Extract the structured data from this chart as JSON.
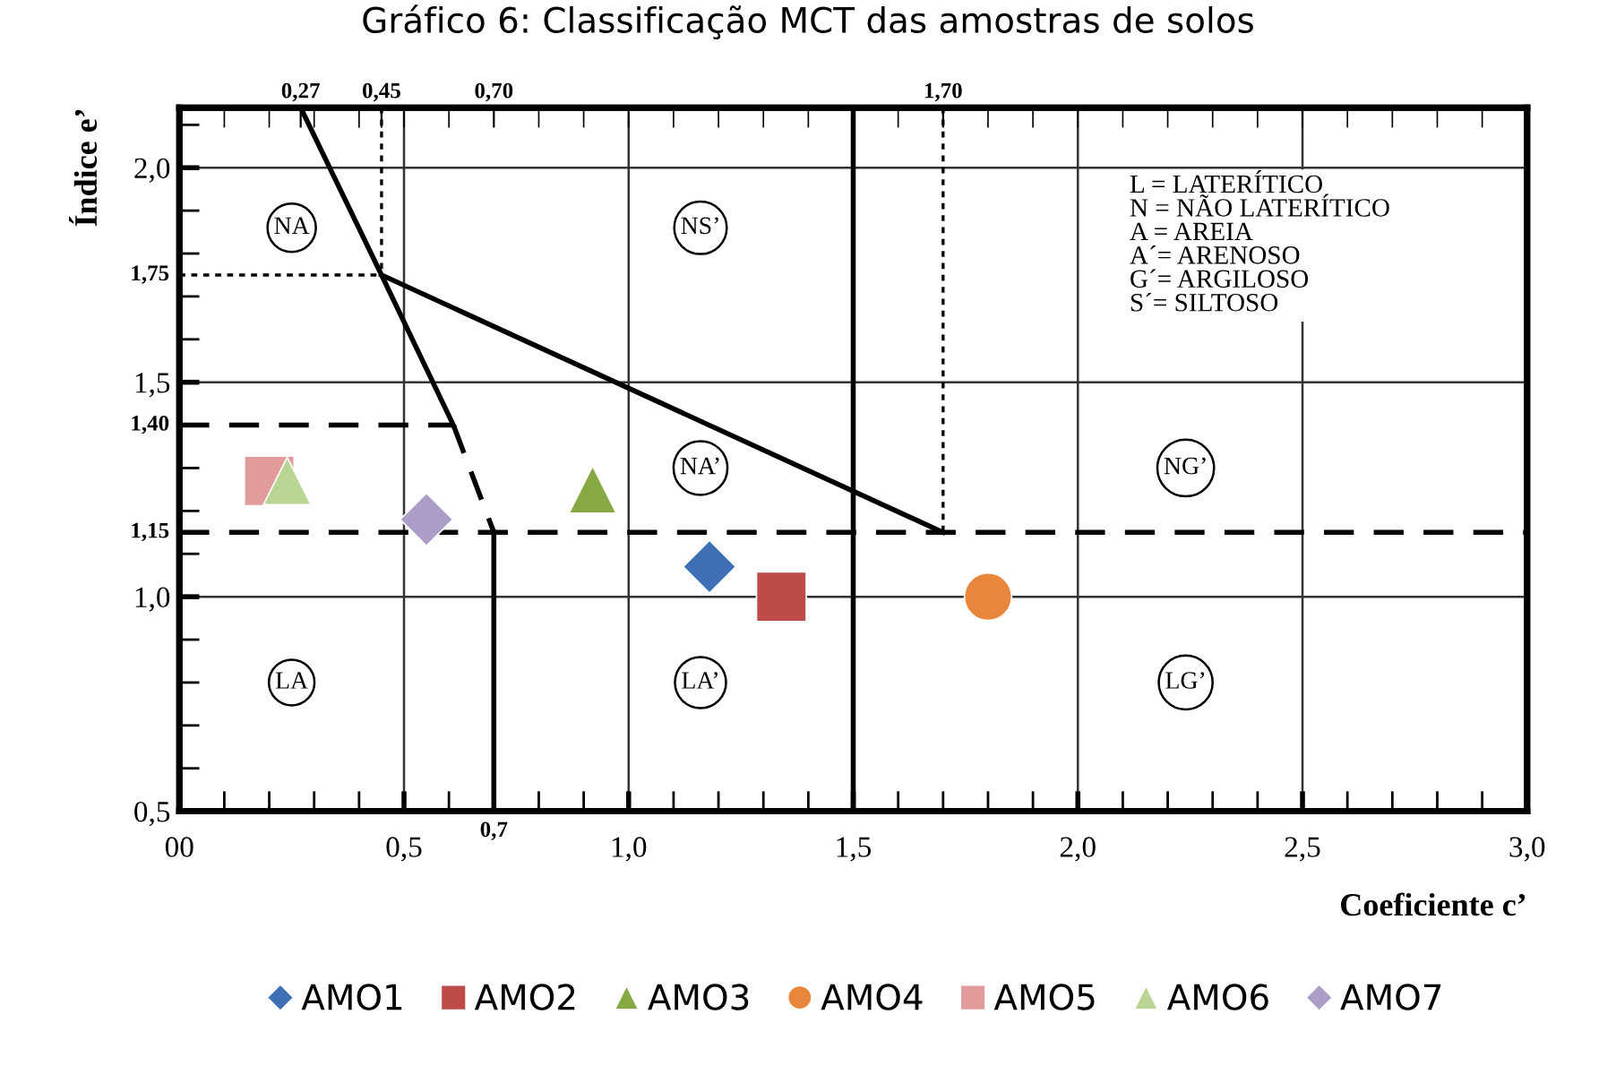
{
  "chart_data": {
    "type": "scatter",
    "title": "Gráfico 6: Classificação MCT das amostras de solos",
    "xlabel": "Coeficiente c’",
    "ylabel": "Índice e’",
    "xlim": [
      0,
      3.0
    ],
    "ylim": [
      0.5,
      2.14
    ],
    "xticks": [
      {
        "value": 0,
        "label": "00"
      },
      {
        "value": 0.5,
        "label": "0,5"
      },
      {
        "value": 1.0,
        "label": "1,0"
      },
      {
        "value": 1.5,
        "label": "1,5"
      },
      {
        "value": 2.0,
        "label": "2,0"
      },
      {
        "value": 2.5,
        "label": "2,5"
      },
      {
        "value": 3.0,
        "label": "3,0"
      },
      {
        "value": 0.1,
        "label": null
      },
      {
        "value": 0.2,
        "label": null
      },
      {
        "value": 0.3,
        "label": null
      },
      {
        "value": 0.4,
        "label": null
      },
      {
        "value": 0.6,
        "label": null
      },
      {
        "value": 0.8,
        "label": null
      },
      {
        "value": 0.9,
        "label": null
      },
      {
        "value": 1.1,
        "label": null
      },
      {
        "value": 1.2,
        "label": null
      },
      {
        "value": 1.3,
        "label": null
      },
      {
        "value": 1.4,
        "label": null
      },
      {
        "value": 1.6,
        "label": null
      },
      {
        "value": 1.7,
        "label": null
      },
      {
        "value": 1.8,
        "label": null
      },
      {
        "value": 1.9,
        "label": null
      },
      {
        "value": 2.1,
        "label": null
      },
      {
        "value": 2.2,
        "label": null
      },
      {
        "value": 2.3,
        "label": null
      },
      {
        "value": 2.4,
        "label": null
      },
      {
        "value": 2.6,
        "label": null
      },
      {
        "value": 2.7,
        "label": null
      },
      {
        "value": 2.8,
        "label": null
      },
      {
        "value": 2.9,
        "label": null
      }
    ],
    "x2lim": [
      0,
      3.0
    ],
    "x2ticks": [
      {
        "value": 0.27,
        "label": "0,27"
      },
      {
        "value": 0.45,
        "label": "0,45"
      },
      {
        "value": 0.7,
        "label": "0,70"
      },
      {
        "value": 1.7,
        "label": "1,70"
      },
      {
        "value": 0.1,
        "label": null
      },
      {
        "value": 0.2,
        "label": null
      },
      {
        "value": 0.3,
        "label": null
      },
      {
        "value": 0.4,
        "label": null
      },
      {
        "value": 0.5,
        "label": null
      },
      {
        "value": 0.6,
        "label": null
      },
      {
        "value": 0.8,
        "label": null
      },
      {
        "value": 0.9,
        "label": null
      },
      {
        "value": 1.0,
        "label": null
      },
      {
        "value": 1.1,
        "label": null
      },
      {
        "value": 1.2,
        "label": null
      },
      {
        "value": 1.3,
        "label": null
      },
      {
        "value": 1.4,
        "label": null
      },
      {
        "value": 1.5,
        "label": null
      },
      {
        "value": 1.6,
        "label": null
      },
      {
        "value": 1.8,
        "label": null
      },
      {
        "value": 1.9,
        "label": null
      },
      {
        "value": 2.0,
        "label": null
      },
      {
        "value": 2.1,
        "label": null
      },
      {
        "value": 2.2,
        "label": null
      },
      {
        "value": 2.3,
        "label": null
      },
      {
        "value": 2.4,
        "label": null
      },
      {
        "value": 2.5,
        "label": null
      },
      {
        "value": 2.6,
        "label": null
      },
      {
        "value": 2.7,
        "label": null
      },
      {
        "value": 2.8,
        "label": null
      },
      {
        "value": 2.9,
        "label": null
      }
    ],
    "yticks": [
      {
        "value": 0.5,
        "label": "0,5"
      },
      {
        "value": 1.0,
        "label": "1,0"
      },
      {
        "value": 1.5,
        "label": "1,5"
      },
      {
        "value": 2.0,
        "label": "2,0"
      },
      {
        "value": 0.6,
        "label": null
      },
      {
        "value": 0.7,
        "label": null
      },
      {
        "value": 0.8,
        "label": null
      },
      {
        "value": 0.9,
        "label": null
      },
      {
        "value": 1.1,
        "label": null
      },
      {
        "value": 1.2,
        "label": null
      },
      {
        "value": 1.3,
        "label": null
      },
      {
        "value": 1.6,
        "label": null
      },
      {
        "value": 1.7,
        "label": null
      },
      {
        "value": 1.8,
        "label": null
      },
      {
        "value": 1.9,
        "label": null
      },
      {
        "value": 2.1,
        "label": null
      }
    ],
    "grid": true,
    "legend": "bottom",
    "ref_lines": [
      {
        "axis": "x",
        "value": 1.5,
        "color": "#000000",
        "line_style": "solid"
      }
    ],
    "series": [
      {
        "type": "line",
        "color": "#000000",
        "line_style": "solid",
        "x": [
          0.27,
          0.45,
          0.61
        ],
        "values": [
          2.14,
          1.75,
          1.4
        ]
      },
      {
        "type": "line",
        "color": "#000000",
        "line_style": "dashed",
        "x": [
          0.61,
          0.7
        ],
        "values": [
          1.4,
          1.15
        ]
      },
      {
        "type": "line",
        "color": "#000000",
        "line_style": "solid",
        "x": [
          0.7,
          0.7
        ],
        "values": [
          1.15,
          0.5
        ]
      },
      {
        "type": "line",
        "color": "#000000",
        "line_style": "solid",
        "x": [
          0.45,
          1.7
        ],
        "values": [
          1.75,
          1.15
        ]
      },
      {
        "type": "line",
        "color": "#000000",
        "line_style": "dashed",
        "x": [
          0,
          0.61
        ],
        "values": [
          1.4,
          1.4
        ]
      },
      {
        "type": "line",
        "color": "#000000",
        "line_style": "dashed",
        "x": [
          0,
          3.0
        ],
        "values": [
          1.15,
          1.15
        ]
      },
      {
        "type": "line",
        "color": "#000000",
        "line_style": "dotted",
        "x": [
          0.45,
          0.45
        ],
        "values": [
          2.14,
          1.75
        ]
      },
      {
        "type": "line",
        "color": "#000000",
        "line_style": "dotted",
        "x": [
          0,
          0.45
        ],
        "values": [
          1.75,
          1.75
        ]
      },
      {
        "type": "line",
        "color": "#000000",
        "line_style": "dotted",
        "x": [
          1.7,
          1.7
        ],
        "values": [
          2.14,
          1.15
        ]
      },
      {
        "name": "AMO1",
        "color": "#3f6fb5",
        "marker": "diamond",
        "x": [
          1.18
        ],
        "values": [
          1.07
        ]
      },
      {
        "name": "AMO2",
        "color": "#be4b48",
        "marker": "square",
        "x": [
          1.34
        ],
        "values": [
          1.0
        ]
      },
      {
        "name": "AMO3",
        "color": "#86a944",
        "marker": "triangle",
        "x": [
          0.92
        ],
        "values": [
          1.25
        ]
      },
      {
        "name": "AMO4",
        "color": "#e8873c",
        "marker": "circle",
        "x": [
          1.8
        ],
        "values": [
          1.0
        ]
      },
      {
        "name": "AMO5",
        "color": "#e39a9b",
        "marker": "square",
        "x": [
          0.2
        ],
        "values": [
          1.27
        ]
      },
      {
        "name": "AMO6",
        "color": "#b9d594",
        "marker": "triangle",
        "x": [
          0.24
        ],
        "values": [
          1.27
        ]
      },
      {
        "name": "AMO7",
        "color": "#ab9dc8",
        "marker": "diamond",
        "x": [
          0.55
        ],
        "values": [
          1.18
        ]
      }
    ],
    "annotations": [
      {
        "text": "1,75",
        "x": 0,
        "y": 1.75
      },
      {
        "text": "1,40",
        "x": 0,
        "y": 1.4
      },
      {
        "text": "1,15",
        "x": 0,
        "y": 1.15
      },
      {
        "text": "0,7",
        "x": 0.7,
        "y": 0.5
      },
      {
        "text": "NA",
        "x": 0.25,
        "y": 1.86
      },
      {
        "text": "NS’",
        "x": 1.16,
        "y": 1.86
      },
      {
        "text": "NA’",
        "x": 1.16,
        "y": 1.3
      },
      {
        "text": "NG’",
        "x": 2.24,
        "y": 1.3
      },
      {
        "text": "LA",
        "x": 0.25,
        "y": 0.8
      },
      {
        "text": "LA’",
        "x": 1.16,
        "y": 0.8
      },
      {
        "text": "LG’",
        "x": 2.24,
        "y": 0.8
      },
      "L = LATERÍTICO",
      "N = NÃO LATERÍTICO",
      "A = AREIA",
      "A´= ARENOSO",
      "G´= ARGILOSO",
      "S´= SILTOSO"
    ]
  }
}
